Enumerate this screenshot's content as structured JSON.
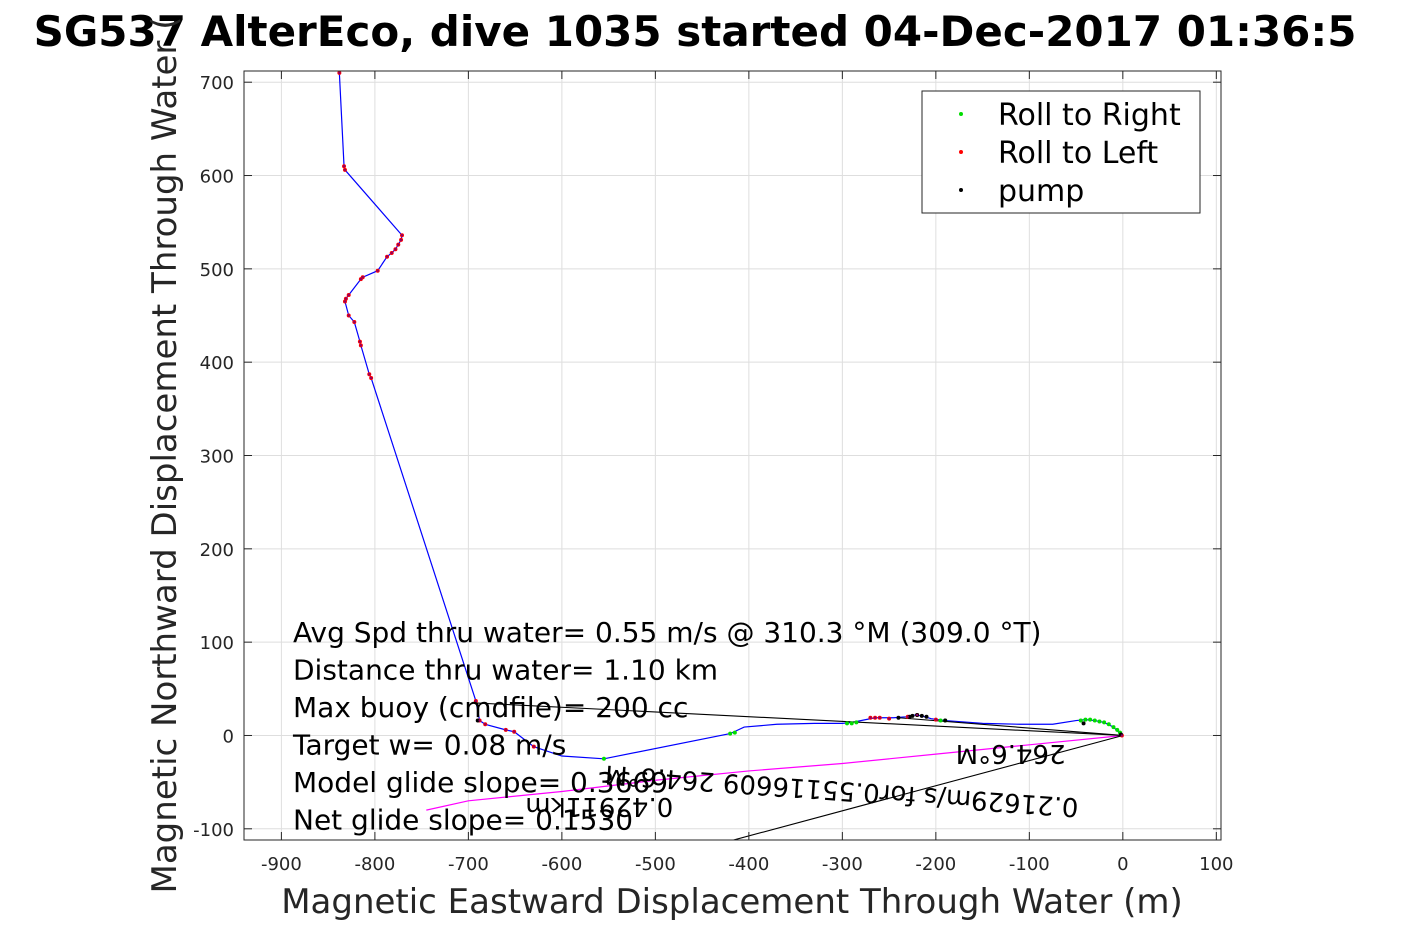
{
  "chart_data": {
    "type": "line",
    "title": "SG537 AlterEco, dive 1035 started 04-Dec-2017 01:36:5",
    "xlabel": "Magnetic Eastward Displacement Through Water (m)",
    "ylabel": "Magnetic Northward Displacement Through Water (",
    "xlim": [
      -940,
      105
    ],
    "ylim": [
      -112,
      712
    ],
    "xticks": [
      -900,
      -800,
      -700,
      -600,
      -500,
      -400,
      -300,
      -200,
      -100,
      0,
      100
    ],
    "yticks": [
      -100,
      0,
      100,
      200,
      300,
      400,
      500,
      600,
      700
    ],
    "grid": true,
    "legend_position": "top-right",
    "legend": [
      {
        "label": "Roll to Right",
        "color": "#00dd00"
      },
      {
        "label": "Roll to Left",
        "color": "#ff0000"
      },
      {
        "label": "pump",
        "color": "#000000"
      }
    ],
    "annotations": [
      "Avg Spd thru water=  0.55 m/s @ 310.3 °M (309.0 °T)",
      "Distance thru water=  1.10 km",
      "Max buoy (cmdfile)= 200 cc",
      "Target w= 0.08 m/s",
      "Model glide slope= 0.3669",
      "Net glide slope= 0.1530"
    ],
    "overlay_texts": [
      {
        "text": "0.21629m/s for0.55116609 264.6°M",
        "x": -300,
        "y": -50,
        "rotation": 184
      },
      {
        "text": "0.42911km",
        "x": -560,
        "y": -67,
        "rotation": 180
      },
      {
        "text": "264.6°M",
        "x": -120,
        "y": -10,
        "rotation": 180
      }
    ],
    "colors": {
      "track": "#0000ff",
      "roll_right": "#00dd00",
      "roll_left": "#ff0000",
      "pump": "#000000",
      "current_line": "#ff00ff",
      "vector": "#000000"
    },
    "series": [
      {
        "kind": "track",
        "x": [
          -838,
          -833,
          -832,
          -771,
          -772,
          -775,
          -778,
          -782,
          -787,
          -797,
          -813,
          -815,
          -828,
          -831,
          -832,
          -828,
          -822,
          -816,
          -815,
          -806,
          -804,
          -692,
          -688,
          -682,
          -660,
          -651,
          -630,
          -600,
          -555,
          -420,
          -405,
          -370,
          -330,
          -300,
          -290,
          -275,
          -265,
          -245,
          -232,
          -222,
          -215,
          -205,
          -190,
          -150,
          -110,
          -75,
          -50,
          -40,
          -30,
          -20,
          -10,
          -4,
          0
        ],
        "y": [
          710,
          610,
          606,
          536,
          531,
          526,
          521,
          517,
          513,
          498,
          491,
          489,
          472,
          468,
          465,
          450,
          443,
          422,
          418,
          387,
          383,
          37,
          16,
          12,
          6,
          4,
          -12,
          -22,
          -25,
          2,
          9,
          12,
          13,
          13,
          14,
          17,
          19,
          19,
          20,
          22,
          21,
          18,
          16,
          13,
          12,
          12,
          16,
          17,
          16,
          14,
          9,
          3,
          0
        ]
      },
      {
        "kind": "roll_left",
        "x": [
          -838,
          -833,
          -832,
          -771,
          -772,
          -775,
          -778,
          -782,
          -787,
          -797,
          -813,
          -815,
          -828,
          -831,
          -832,
          -828,
          -822,
          -816,
          -815,
          -806,
          -804,
          -692,
          -688,
          -682,
          -660,
          -651,
          -630,
          -270,
          -265,
          -260,
          -250,
          -230,
          -220,
          -200,
          -1
        ],
        "y": [
          710,
          610,
          606,
          536,
          531,
          526,
          521,
          517,
          513,
          498,
          491,
          489,
          472,
          468,
          465,
          450,
          443,
          422,
          418,
          387,
          383,
          37,
          16,
          12,
          6,
          4,
          -12,
          19,
          19,
          19,
          18,
          20,
          22,
          17,
          0
        ]
      },
      {
        "kind": "roll_right",
        "x": [
          -555,
          -420,
          -415,
          -295,
          -290,
          -285,
          -195,
          -190,
          -45,
          -40,
          -35,
          -30,
          -25,
          -20,
          -15,
          -10,
          -6,
          -3
        ],
        "y": [
          -25,
          2,
          3,
          13,
          13,
          14,
          16,
          16,
          16,
          17,
          17,
          16,
          15,
          14,
          12,
          9,
          6,
          3
        ],
        "display_only": false
      },
      {
        "kind": "pump",
        "x": [
          -690,
          -240,
          -228,
          -225,
          -220,
          -215,
          -210,
          -190,
          -42,
          -2
        ],
        "y": [
          16,
          19,
          20,
          21,
          22,
          21,
          20,
          16,
          13,
          1
        ]
      },
      {
        "kind": "current_line",
        "x": [
          -745,
          -700,
          -600,
          -500,
          -400,
          -300,
          -200,
          -100,
          0
        ],
        "y": [
          -80,
          -70,
          -60,
          -48,
          -38,
          -30,
          -20,
          -10,
          0
        ]
      },
      {
        "kind": "vector",
        "x": [
          -695,
          0
        ],
        "y": [
          35,
          0
        ]
      },
      {
        "kind": "vector",
        "x": [
          -420,
          0
        ],
        "y": [
          -113,
          0
        ]
      },
      {
        "kind": "vector",
        "x": [
          -240,
          0
        ],
        "y": [
          19,
          0
        ]
      }
    ]
  }
}
